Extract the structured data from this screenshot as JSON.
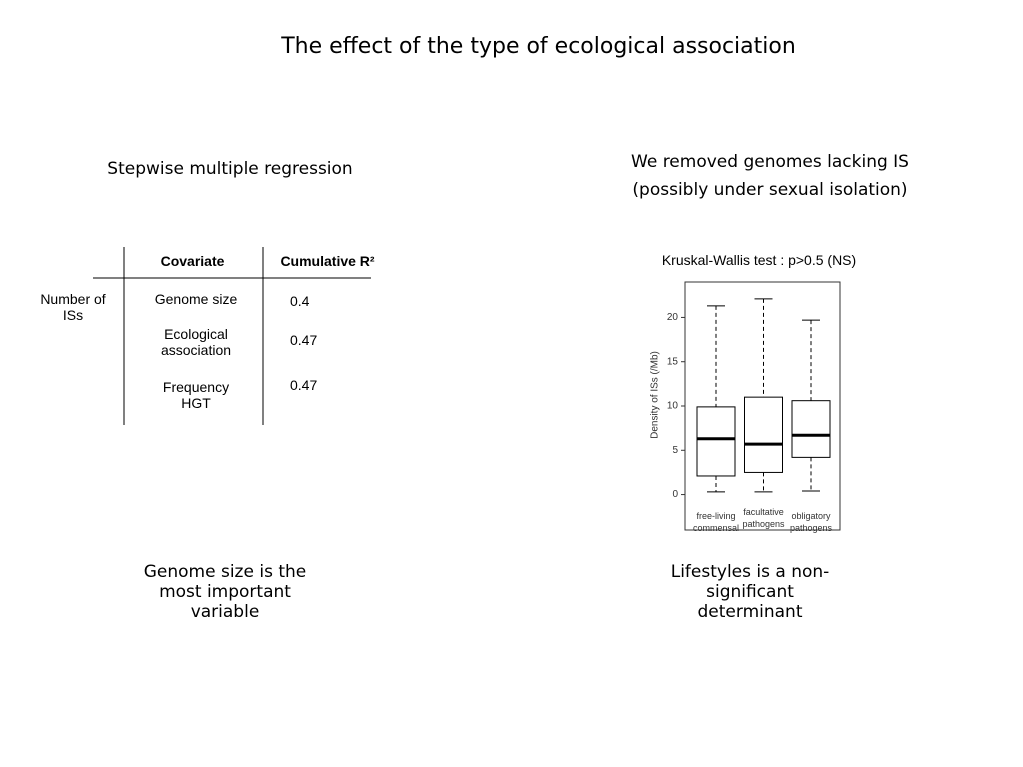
{
  "header": {
    "title": "The effect of the type of ecological association"
  },
  "left": {
    "heading": "Stepwise multiple regression",
    "table": {
      "columns": [
        "Covariate",
        "Cumulative R²"
      ],
      "row_label": "Number of ISs",
      "rows": [
        [
          "Genome size",
          0.4
        ],
        [
          "Ecological association",
          0.47
        ],
        [
          "Frequency HGT",
          0.47
        ]
      ]
    },
    "conclusion": "Genome size is the most important variable"
  },
  "right": {
    "heading": [
      "We removed genomes lacking IS",
      "(possibly under sexual isolation)"
    ],
    "conclusion": "Lifestyles is a non-significant determinant"
  },
  "chart_data": {
    "type": "box",
    "title": "Kruskal-Wallis test : p>0.5 (NS)",
    "y_label": "Density of ISs (/Mb)",
    "categories": [
      "free-living commensal",
      "facultative pathogens",
      "obligatory pathogens"
    ],
    "boxes": [
      {
        "min": 0.3,
        "q1": 2.1,
        "median": 6.3,
        "q3": 9.9,
        "max": 21.3
      },
      {
        "min": 0.3,
        "q1": 2.5,
        "median": 5.7,
        "q3": 11.0,
        "max": 22.1
      },
      {
        "min": 0.4,
        "q1": 4.2,
        "median": 6.7,
        "q3": 10.6,
        "max": 19.7
      }
    ],
    "color": "#000000",
    "ylim": [
      -4,
      24
    ],
    "yticks": [
      0,
      5,
      10,
      15,
      20
    ]
  }
}
